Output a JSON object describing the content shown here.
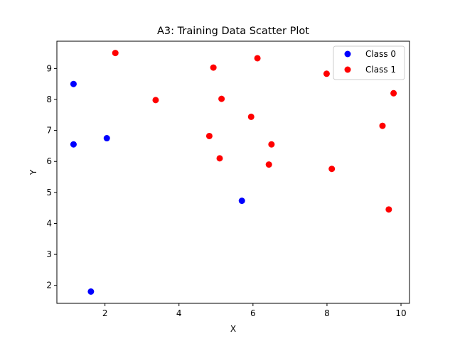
{
  "chart_data": {
    "type": "scatter",
    "title": "A3: Training Data Scatter Plot",
    "xlabel": "X",
    "ylabel": "Y",
    "xlim": [
      0.7,
      10.23
    ],
    "ylim": [
      1.42,
      9.88
    ],
    "xticks": [
      2,
      4,
      6,
      8,
      10
    ],
    "yticks": [
      2,
      3,
      4,
      5,
      6,
      7,
      8,
      9
    ],
    "grid": false,
    "legend_position": "top-right",
    "series": [
      {
        "name": "Class 0",
        "color": "#0000ff",
        "points": [
          {
            "x": 1.15,
            "y": 8.5
          },
          {
            "x": 1.15,
            "y": 6.55
          },
          {
            "x": 2.05,
            "y": 6.75
          },
          {
            "x": 5.7,
            "y": 4.73
          },
          {
            "x": 1.62,
            "y": 1.8
          }
        ]
      },
      {
        "name": "Class 1",
        "color": "#ff0000",
        "points": [
          {
            "x": 2.28,
            "y": 9.5
          },
          {
            "x": 4.93,
            "y": 9.03
          },
          {
            "x": 6.12,
            "y": 9.33
          },
          {
            "x": 7.99,
            "y": 8.83
          },
          {
            "x": 9.8,
            "y": 8.2
          },
          {
            "x": 3.37,
            "y": 7.98
          },
          {
            "x": 5.15,
            "y": 8.02
          },
          {
            "x": 5.95,
            "y": 7.44
          },
          {
            "x": 9.5,
            "y": 7.15
          },
          {
            "x": 4.82,
            "y": 6.82
          },
          {
            "x": 6.5,
            "y": 6.55
          },
          {
            "x": 5.1,
            "y": 6.1
          },
          {
            "x": 6.43,
            "y": 5.9
          },
          {
            "x": 8.13,
            "y": 5.76
          },
          {
            "x": 9.67,
            "y": 4.45
          }
        ]
      }
    ]
  }
}
